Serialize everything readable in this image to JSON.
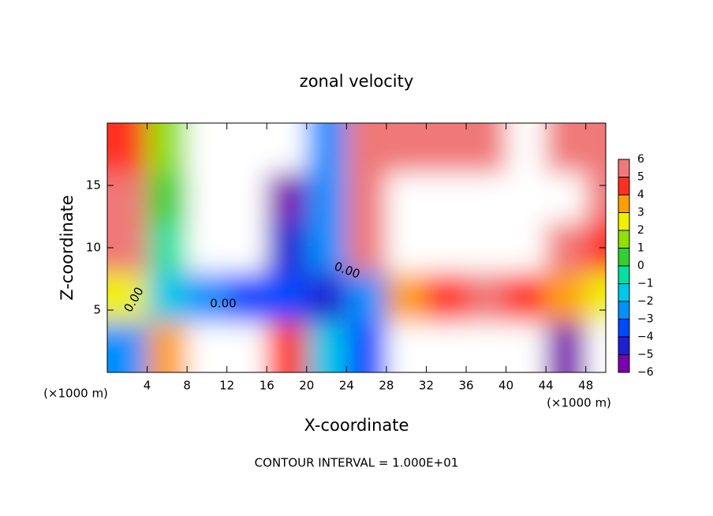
{
  "chart_data": {
    "type": "contour",
    "title": "zonal velocity",
    "x_label": "X-coordinate",
    "y_label": "Z-coordinate",
    "x_unit": "(×1000 m)",
    "y_unit": "(×1000 m)",
    "footer": "CONTOUR INTERVAL = 1.000E+01",
    "contour_labels": [
      "0.00",
      "0.00",
      "0.00"
    ],
    "x": [
      2,
      6,
      10,
      14,
      18,
      22,
      26,
      30,
      34,
      38,
      42,
      46,
      50
    ],
    "z": [
      2,
      6,
      10,
      14,
      18
    ],
    "values": [
      [
        -3,
        3,
        7,
        7,
        4,
        -2,
        -4,
        -7,
        -7,
        -7,
        -7,
        -6,
        -7
      ],
      [
        2,
        -2,
        -3,
        -4,
        -4,
        -5,
        -3,
        3,
        4,
        5,
        4,
        3,
        2
      ],
      [
        5,
        -1,
        -7,
        -7,
        -5,
        -3,
        5,
        7,
        7,
        7,
        7,
        5,
        4
      ],
      [
        5,
        0,
        -7,
        -7,
        -6,
        -3,
        5,
        7,
        7,
        7,
        7,
        7,
        6
      ],
      [
        4,
        1,
        -7,
        -7,
        -7,
        -3,
        5,
        6,
        6,
        6,
        7,
        5,
        6
      ]
    ],
    "xlim": [
      0,
      50
    ],
    "xticks": [
      4,
      8,
      12,
      16,
      20,
      24,
      28,
      32,
      36,
      40,
      44,
      48
    ],
    "ylim": [
      0,
      20
    ],
    "yticks": [
      5,
      10,
      15
    ],
    "colorbar_lim": [
      -6,
      6
    ],
    "colorbar_ticks": [
      {
        "value": -6,
        "label": "−6"
      },
      {
        "value": -5,
        "label": "−5"
      },
      {
        "value": -4,
        "label": "−4"
      },
      {
        "value": -3,
        "label": "−3"
      },
      {
        "value": -2,
        "label": "−2"
      },
      {
        "value": -1,
        "label": "−1"
      },
      0,
      1,
      2,
      3,
      4,
      5,
      6
    ],
    "colors": [
      "#7a00b0",
      "#2020d0",
      "#0048ff",
      "#0090ff",
      "#00c8e8",
      "#00e0a0",
      "#30d030",
      "#90e000",
      "#f0f000",
      "#ffa000",
      "#ff3020",
      "#f07878"
    ]
  }
}
